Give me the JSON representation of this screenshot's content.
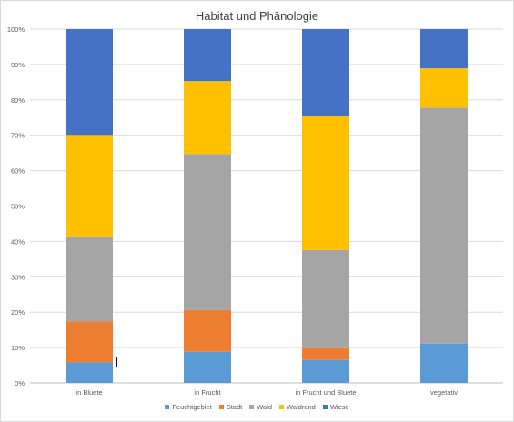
{
  "chart_data": {
    "type": "bar",
    "stacked": "percent",
    "title": "Habitat und Phänologie",
    "categories": [
      "in Bluete",
      "in Frucht",
      "in Frucht und Bluete",
      "vegetativ"
    ],
    "series": [
      {
        "name": "Feuchtgebiet",
        "color": "#5b9bd5",
        "values": [
          5.8,
          8.8,
          6.5,
          11.1
        ]
      },
      {
        "name": "Stadt",
        "color": "#ed7d31",
        "values": [
          11.6,
          11.8,
          3.3,
          0
        ]
      },
      {
        "name": "Wald",
        "color": "#a5a5a5",
        "values": [
          23.8,
          44.1,
          27.8,
          66.7
        ]
      },
      {
        "name": "Waldrand",
        "color": "#ffc000",
        "values": [
          28.9,
          20.6,
          37.9,
          11.1
        ]
      },
      {
        "name": "Wiese",
        "color": "#4472c4",
        "values": [
          29.9,
          14.7,
          24.5,
          11.1
        ]
      }
    ],
    "ylim": [
      0,
      100
    ],
    "yticks": [
      "0%",
      "10%",
      "20%",
      "30%",
      "40%",
      "50%",
      "60%",
      "70%",
      "80%",
      "90%",
      "100%"
    ],
    "grid": true,
    "legend": "bottom"
  }
}
